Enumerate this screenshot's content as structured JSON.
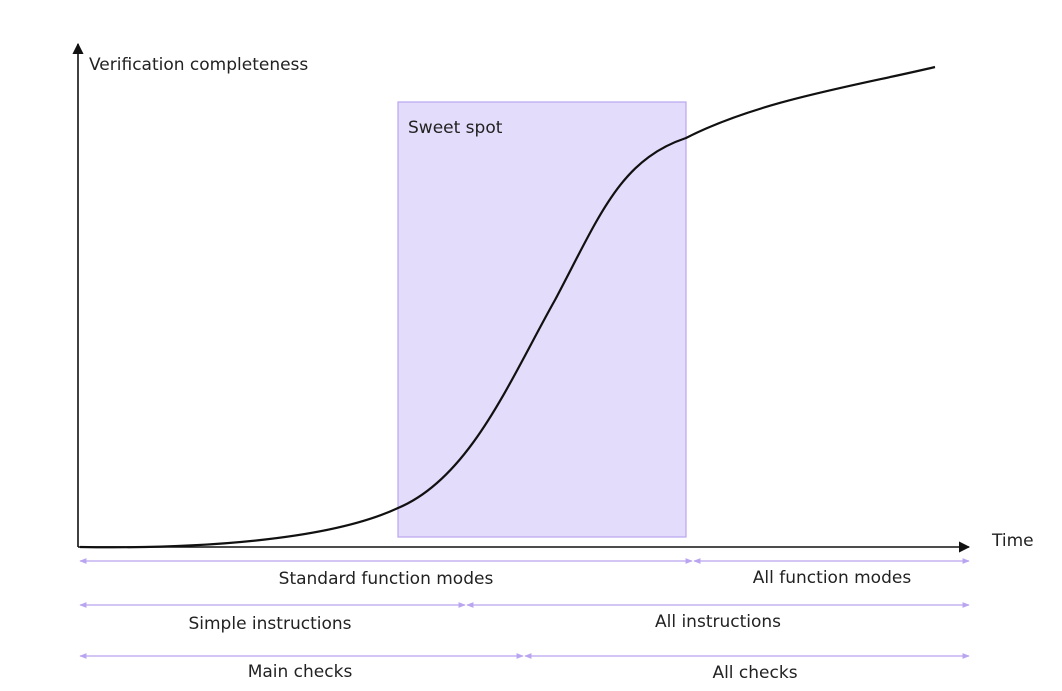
{
  "axes": {
    "y_label": "Verification completeness",
    "x_label": "Time"
  },
  "sweet_spot": {
    "label": "Sweet spot",
    "fill": "#e4dcfb",
    "stroke": "#b9a5ef"
  },
  "colors": {
    "curve": "#111111",
    "axis": "#111111",
    "span_arrow": "#b9a5ef",
    "text": "#222222"
  },
  "span_rows": [
    {
      "left_label": "Standard function modes",
      "right_label": "All function modes"
    },
    {
      "left_label": "Simple instructions",
      "right_label": "All instructions"
    },
    {
      "left_label": "Main checks",
      "right_label": "All checks"
    }
  ]
}
